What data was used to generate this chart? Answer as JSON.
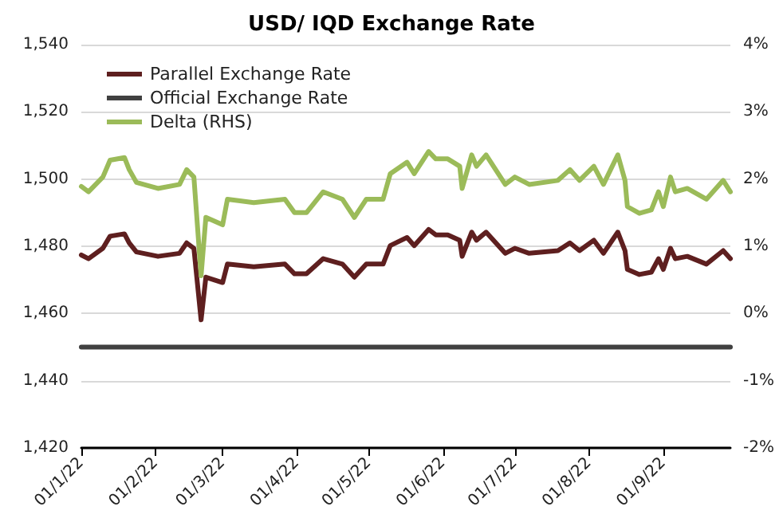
{
  "chart_data": {
    "type": "line",
    "title": "USD/ IQD Exchange Rate",
    "x": [
      "2022-01-01",
      "2022-01-04",
      "2022-01-10",
      "2022-01-13",
      "2022-01-19",
      "2022-01-21",
      "2022-01-24",
      "2022-02-02",
      "2022-02-11",
      "2022-02-14",
      "2022-02-17",
      "2022-02-20",
      "2022-02-22",
      "2022-03-01",
      "2022-03-03",
      "2022-03-14",
      "2022-03-27",
      "2022-03-31",
      "2022-04-05",
      "2022-04-12",
      "2022-04-20",
      "2022-04-25",
      "2022-04-30",
      "2022-05-07",
      "2022-05-10",
      "2022-05-17",
      "2022-05-20",
      "2022-05-26",
      "2022-05-29",
      "2022-06-03",
      "2022-06-08",
      "2022-06-09",
      "2022-06-13",
      "2022-06-15",
      "2022-06-19",
      "2022-06-27",
      "2022-07-01",
      "2022-07-07",
      "2022-07-19",
      "2022-07-24",
      "2022-07-28",
      "2022-08-03",
      "2022-08-07",
      "2022-08-13",
      "2022-08-16",
      "2022-08-17",
      "2022-08-22",
      "2022-08-27",
      "2022-08-30",
      "2022-09-01",
      "2022-09-04",
      "2022-09-06",
      "2022-09-11",
      "2022-09-19",
      "2022-09-26",
      "2022-09-29"
    ],
    "series": [
      {
        "name": "Parallel Exchange Rate",
        "color": "#5e1f1f",
        "values": [
          1477.4,
          1476.3,
          1479.4,
          1483,
          1483.7,
          1481,
          1478.3,
          1477,
          1477.9,
          1481,
          1479.4,
          1458.1,
          1470.8,
          1469.2,
          1474.7,
          1473.9,
          1474.7,
          1471.8,
          1471.8,
          1476.3,
          1474.7,
          1470.8,
          1474.7,
          1474.7,
          1480.2,
          1482.6,
          1480.2,
          1485,
          1483.4,
          1483.4,
          1481.8,
          1477,
          1484.2,
          1481.8,
          1484.2,
          1477.9,
          1479.4,
          1477.9,
          1478.7,
          1481,
          1478.7,
          1481.8,
          1477.9,
          1484.2,
          1478.7,
          1473.1,
          1471.6,
          1472.3,
          1476.3,
          1473.1,
          1479.4,
          1476.3,
          1477,
          1474.7,
          1478.7,
          1476.3
        ]
      },
      {
        "name": "Official Exchange Rate",
        "color": "#404040",
        "x": [
          "2022-01-01",
          "2022-09-29"
        ],
        "values": [
          1450,
          1450
        ]
      },
      {
        "name": "Delta (RHS)",
        "color": "#9bbb59",
        "axis": "y2",
        "values": [
          1.89,
          1.81,
          2.03,
          2.28,
          2.32,
          2.14,
          1.95,
          1.86,
          1.92,
          2.14,
          2.03,
          0.56,
          1.43,
          1.32,
          1.7,
          1.65,
          1.7,
          1.5,
          1.5,
          1.81,
          1.7,
          1.43,
          1.7,
          1.7,
          2.08,
          2.25,
          2.08,
          2.41,
          2.3,
          2.3,
          2.19,
          1.86,
          2.36,
          2.19,
          2.36,
          1.92,
          2.03,
          1.92,
          1.98,
          2.14,
          1.98,
          2.19,
          1.92,
          2.36,
          1.98,
          1.59,
          1.49,
          1.54,
          1.81,
          1.59,
          2.03,
          1.81,
          1.86,
          1.7,
          1.98,
          1.81
        ]
      }
    ],
    "xlim": [
      "2022-01-01",
      "2022-09-29"
    ],
    "xticks": [
      {
        "value": "2022-01-01",
        "label": "01/1/22"
      },
      {
        "value": "2022-02-01",
        "label": "01/2/22"
      },
      {
        "value": "2022-03-01",
        "label": "01/3/22"
      },
      {
        "value": "2022-04-01",
        "label": "01/4/22"
      },
      {
        "value": "2022-05-01",
        "label": "01/5/22"
      },
      {
        "value": "2022-06-01",
        "label": "01/6/22"
      },
      {
        "value": "2022-07-01",
        "label": "01/7/22"
      },
      {
        "value": "2022-08-01",
        "label": "01/8/22"
      },
      {
        "value": "2022-09-01",
        "label": "01/9/22"
      }
    ],
    "ylim": [
      1420,
      1540
    ],
    "yticks": [
      {
        "value": 1420,
        "label": "1,420"
      },
      {
        "value": 1440,
        "label": "1,440"
      },
      {
        "value": 1460,
        "label": "1,460"
      },
      {
        "value": 1480,
        "label": "1,480"
      },
      {
        "value": 1500,
        "label": "1,500"
      },
      {
        "value": 1520,
        "label": "1,520"
      },
      {
        "value": 1540,
        "label": "1,540"
      }
    ],
    "y2lim": [
      -2,
      4
    ],
    "y2ticks": [
      {
        "value": -2,
        "label": "-2%"
      },
      {
        "value": -1,
        "label": "-1%"
      },
      {
        "value": 0,
        "label": "0%"
      },
      {
        "value": 1,
        "label": "1%"
      },
      {
        "value": 2,
        "label": "2%"
      },
      {
        "value": 3,
        "label": "3%"
      },
      {
        "value": 4,
        "label": "4%"
      }
    ],
    "grid": "y",
    "legend": "top left",
    "marker": "none",
    "line_style": "solid"
  }
}
